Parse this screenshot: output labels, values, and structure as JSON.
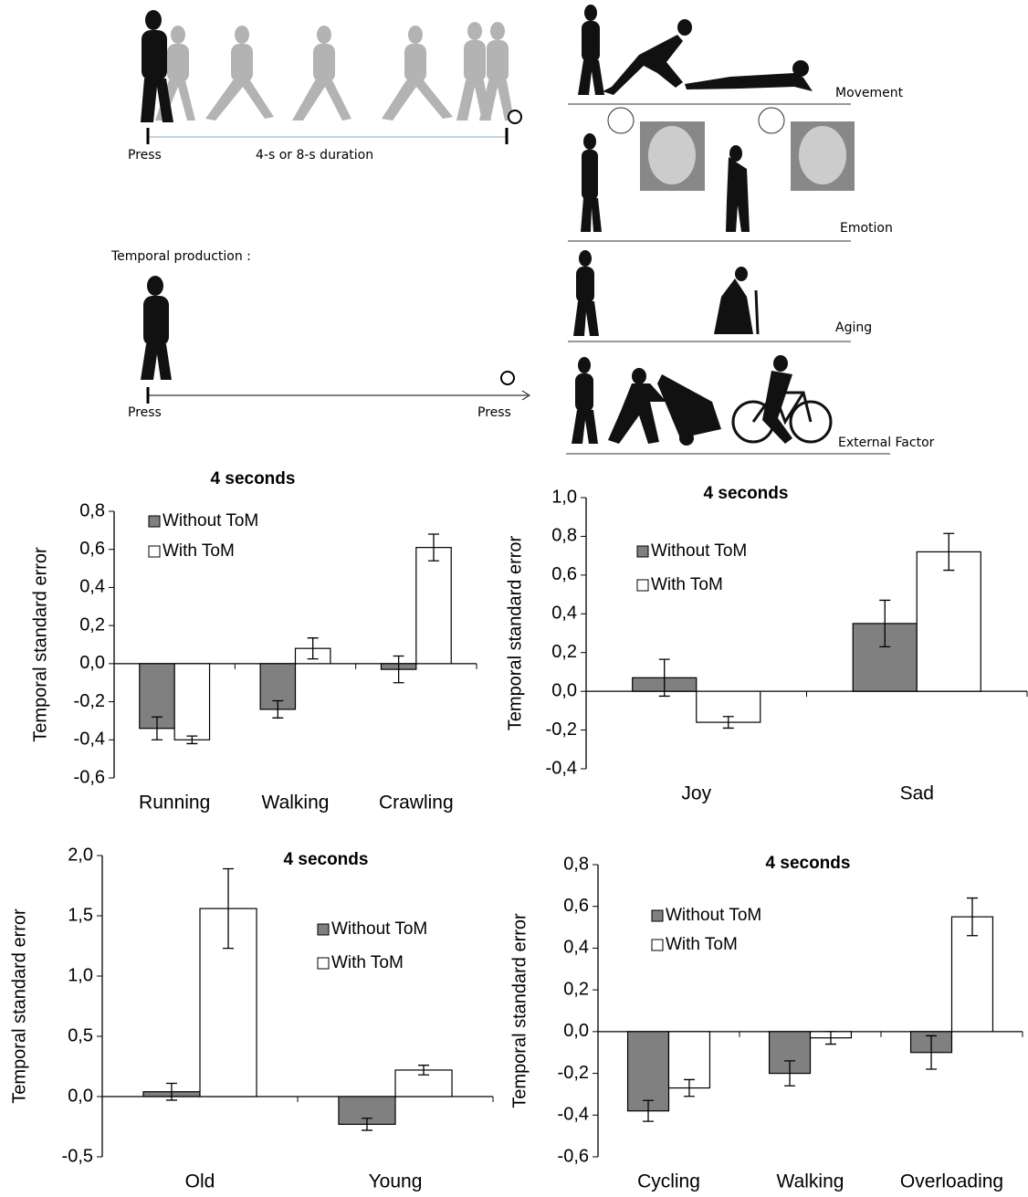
{
  "illustration": {
    "press_1": "Press",
    "duration": "4-s or 8-s duration",
    "production": "Temporal production :",
    "press_2": "Press",
    "press_3": "Press",
    "movement": "Movement",
    "emotion": "Emotion",
    "aging": "Aging",
    "external": "External Factor"
  },
  "chart_data": [
    {
      "type": "bar",
      "title": "4 seconds",
      "y_label": "Temporal standard error",
      "categories": [
        "Running",
        "Walking",
        "Crawling"
      ],
      "series": [
        {
          "name": "Without ToM",
          "color": "#808080",
          "values": [
            -0.34,
            -0.24,
            -0.03
          ],
          "errors": [
            0.06,
            0.045,
            0.07
          ]
        },
        {
          "name": "With ToM",
          "color": "#ffffff",
          "values": [
            -0.4,
            0.08,
            0.61
          ],
          "errors": [
            0.02,
            0.055,
            0.07
          ]
        }
      ],
      "ylim": [
        -0.6,
        0.8
      ],
      "yticks": [
        {
          "value": -0.6,
          "label": "-0,6"
        },
        {
          "value": -0.4,
          "label": "-0,4"
        },
        {
          "value": -0.2,
          "label": "-0,2"
        },
        {
          "value": 0,
          "label": "0,0"
        },
        {
          "value": 0.2,
          "label": "0,2"
        },
        {
          "value": 0.4,
          "label": "0,4"
        },
        {
          "value": 0.6,
          "label": "0,6"
        },
        {
          "value": 0.8,
          "label": "0,8"
        }
      ]
    },
    {
      "type": "bar",
      "title": "4 seconds",
      "y_label": "Temporal standard error",
      "categories": [
        "Joy",
        "Sad"
      ],
      "series": [
        {
          "name": "Without ToM",
          "color": "#808080",
          "values": [
            0.07,
            0.35
          ],
          "errors": [
            0.095,
            0.12
          ]
        },
        {
          "name": "With ToM",
          "color": "#ffffff",
          "values": [
            -0.16,
            0.72
          ],
          "errors": [
            0.03,
            0.095
          ]
        }
      ],
      "ylim": [
        -0.4,
        1.0
      ],
      "yticks": [
        {
          "value": -0.4,
          "label": "-0,4"
        },
        {
          "value": -0.2,
          "label": "-0,2"
        },
        {
          "value": 0,
          "label": "0,0"
        },
        {
          "value": 0.2,
          "label": "0,2"
        },
        {
          "value": 0.4,
          "label": "0,4"
        },
        {
          "value": 0.6,
          "label": "0,6"
        },
        {
          "value": 0.8,
          "label": "0,8"
        },
        {
          "value": 1.0,
          "label": "1,0"
        }
      ]
    },
    {
      "type": "bar",
      "title": "4 seconds",
      "y_label": "Temporal standard error",
      "categories": [
        "Old",
        "Young"
      ],
      "series": [
        {
          "name": "Without ToM",
          "color": "#808080",
          "values": [
            0.04,
            -0.23
          ],
          "errors": [
            0.07,
            0.05
          ]
        },
        {
          "name": "With ToM",
          "color": "#ffffff",
          "values": [
            1.56,
            0.22
          ],
          "errors": [
            0.33,
            0.04
          ]
        }
      ],
      "ylim": [
        -0.5,
        2.0
      ],
      "yticks": [
        {
          "value": -0.5,
          "label": "-0,5"
        },
        {
          "value": 0,
          "label": "0,0"
        },
        {
          "value": 0.5,
          "label": "0,5"
        },
        {
          "value": 1.0,
          "label": "1,0"
        },
        {
          "value": 1.5,
          "label": "1,5"
        },
        {
          "value": 2.0,
          "label": "2,0"
        }
      ]
    },
    {
      "type": "bar",
      "title": "4 seconds",
      "y_label": "Temporal standard error",
      "categories": [
        "Cycling",
        "Walking",
        "Overloading"
      ],
      "series": [
        {
          "name": "Without ToM",
          "color": "#808080",
          "values": [
            -0.38,
            -0.2,
            -0.1
          ],
          "errors": [
            0.05,
            0.06,
            0.08
          ]
        },
        {
          "name": "With ToM",
          "color": "#ffffff",
          "values": [
            -0.27,
            -0.03,
            0.55
          ],
          "errors": [
            0.04,
            0.03,
            0.09
          ]
        }
      ],
      "ylim": [
        -0.6,
        0.8
      ],
      "yticks": [
        {
          "value": -0.6,
          "label": "-0,6"
        },
        {
          "value": -0.4,
          "label": "-0,4"
        },
        {
          "value": -0.2,
          "label": "-0,2"
        },
        {
          "value": 0,
          "label": "0,0"
        },
        {
          "value": 0.2,
          "label": "0,2"
        },
        {
          "value": 0.4,
          "label": "0,4"
        },
        {
          "value": 0.6,
          "label": "0,6"
        },
        {
          "value": 0.8,
          "label": "0,8"
        }
      ]
    }
  ]
}
